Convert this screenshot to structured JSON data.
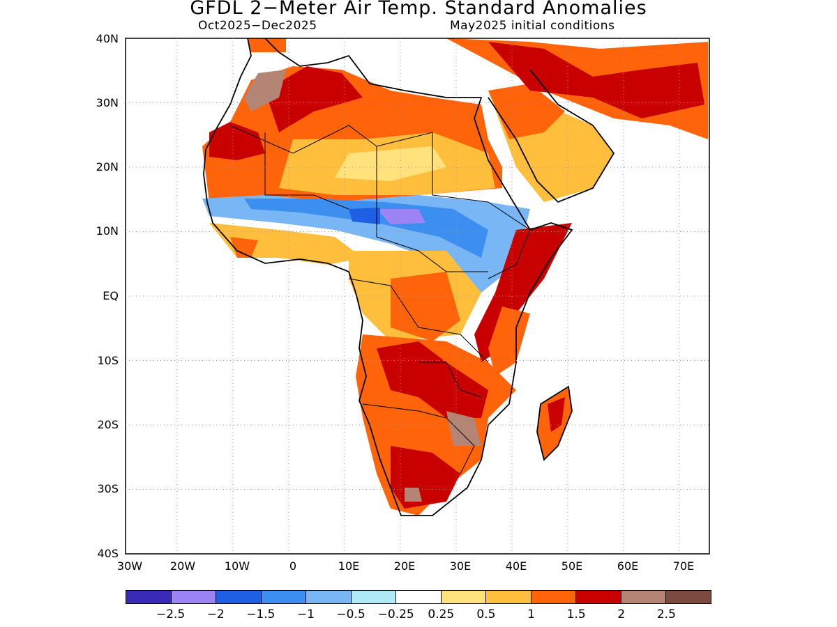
{
  "title": "GFDL 2−Meter Air Temp. Standard Anomalies",
  "subtitle_left": "Oct2025−Dec2025",
  "subtitle_right": "May2025 initial conditions",
  "lat_labels": [
    "40N",
    "30N",
    "20N",
    "10N",
    "EQ",
    "10S",
    "20S",
    "30S",
    "40S"
  ],
  "lon_labels": [
    "30W",
    "20W",
    "10W",
    "0",
    "10E",
    "20E",
    "30E",
    "40E",
    "50E",
    "60E",
    "70E"
  ],
  "legend": {
    "colors": [
      "#3a2ab8",
      "#9c84f4",
      "#1e5fe3",
      "#3c8ef0",
      "#78b6f6",
      "#afeaf6",
      "#ffffff",
      "#ffe27c",
      "#ffbe3c",
      "#ff640a",
      "#c80000",
      "#b48474",
      "#7a4b3e"
    ],
    "labels": [
      "−2.5",
      "−2",
      "−1.5",
      "−1",
      "−0.5",
      "−0.25",
      "0.25",
      "0.5",
      "1",
      "1.5",
      "2",
      "2.5"
    ]
  }
}
